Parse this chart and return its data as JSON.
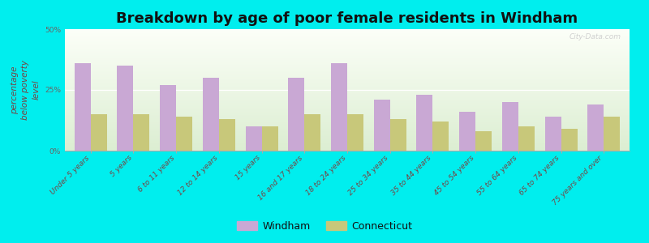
{
  "categories": [
    "Under 5 years",
    "5 years",
    "6 to 11 years",
    "12 to 14 years",
    "15 years",
    "16 and 17 years",
    "18 to 24 years",
    "25 to 34 years",
    "35 to 44 years",
    "45 to 54 years",
    "55 to 64 years",
    "65 to 74 years",
    "75 years and over"
  ],
  "windham": [
    36,
    35,
    27,
    30,
    10,
    30,
    36,
    21,
    23,
    16,
    20,
    14,
    19
  ],
  "connecticut": [
    15,
    15,
    14,
    13,
    10,
    15,
    15,
    13,
    12,
    8,
    10,
    9,
    14
  ],
  "windham_color": "#c9a8d4",
  "connecticut_color": "#c8c87a",
  "background_color": "#00eeee",
  "title": "Breakdown by age of poor female residents in Windham",
  "ylabel": "percentage\nbelow poverty\nlevel",
  "ylim": [
    0,
    50
  ],
  "yticks": [
    0,
    25,
    50
  ],
  "ytick_labels": [
    "0%",
    "25%",
    "50%"
  ],
  "legend_windham": "Windham",
  "legend_connecticut": "Connecticut",
  "title_fontsize": 13,
  "tick_label_fontsize": 6.5,
  "ylabel_fontsize": 7.5,
  "legend_fontsize": 9
}
